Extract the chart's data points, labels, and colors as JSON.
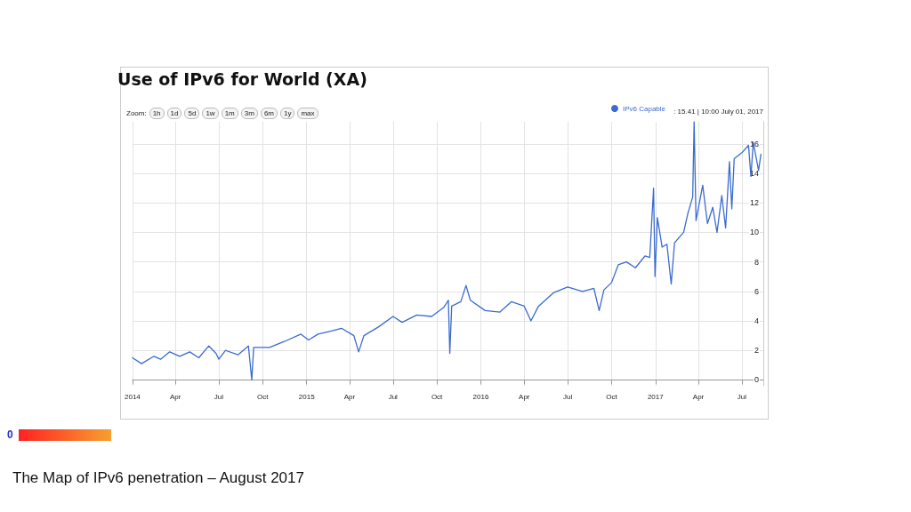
{
  "chart_data": {
    "type": "line",
    "title": "Use of IPv6 for World (XA)",
    "subtitle": "The Map of IPv6 penetration – August 2017",
    "annotations": [
      "Zoom:",
      "1h",
      "1d",
      "5d",
      "1w",
      "1m",
      "3m",
      "6m",
      "1y",
      "max",
      ": 15.41 | 10:00 July 01, 2017",
      "0"
    ],
    "x": [
      "2014-01-01",
      "2014-01-20",
      "2014-02-15",
      "2014-03-01",
      "2014-03-20",
      "2014-04-10",
      "2014-05-01",
      "2014-05-20",
      "2014-06-10",
      "2014-06-25",
      "2014-07-01",
      "2014-07-15",
      "2014-08-10",
      "2014-09-01",
      "2014-09-08",
      "2014-09-12",
      "2014-10-15",
      "2014-11-15",
      "2014-12-20",
      "2015-01-05",
      "2015-01-25",
      "2015-02-20",
      "2015-03-15",
      "2015-04-10",
      "2015-04-20",
      "2015-05-01",
      "2015-06-01",
      "2015-07-01",
      "2015-07-20",
      "2015-08-20",
      "2015-09-20",
      "2015-10-15",
      "2015-10-25",
      "2015-10-28",
      "2015-11-01",
      "2015-11-20",
      "2015-12-01",
      "2015-12-10",
      "2016-01-10",
      "2016-02-10",
      "2016-03-05",
      "2016-04-01",
      "2016-04-15",
      "2016-05-01",
      "2016-06-01",
      "2016-07-01",
      "2016-08-01",
      "2016-08-25",
      "2016-09-05",
      "2016-09-15",
      "2016-10-01",
      "2016-10-15",
      "2016-11-01",
      "2016-11-20",
      "2016-12-10",
      "2016-12-20",
      "2016-12-28",
      "2016-12-31",
      "2017-01-05",
      "2017-01-15",
      "2017-01-25",
      "2017-02-03",
      "2017-02-10",
      "2017-03-01",
      "2017-03-10",
      "2017-03-20",
      "2017-03-23",
      "2017-03-27",
      "2017-04-10",
      "2017-04-20",
      "2017-05-01",
      "2017-05-10",
      "2017-05-20",
      "2017-05-28",
      "2017-06-05",
      "2017-06-10",
      "2017-06-15",
      "2017-07-01",
      "2017-07-15",
      "2017-07-20",
      "2017-07-25",
      "2017-08-05",
      "2017-08-10"
    ],
    "series": [
      {
        "name": "IPv6 Capable",
        "color": "#3a6bd0",
        "values": [
          1.5,
          1.1,
          1.6,
          1.4,
          1.9,
          1.6,
          1.9,
          1.5,
          2.3,
          1.8,
          1.4,
          2.0,
          1.7,
          2.3,
          0,
          2.2,
          2.2,
          2.6,
          3.1,
          2.7,
          3.1,
          3.3,
          3.5,
          3.0,
          1.9,
          3.0,
          3.6,
          4.3,
          3.9,
          4.4,
          4.3,
          4.9,
          5.4,
          1.8,
          5.0,
          5.3,
          6.4,
          5.4,
          4.7,
          4.6,
          5.3,
          5.0,
          4.0,
          5.0,
          5.9,
          6.3,
          6.0,
          6.2,
          4.7,
          6.1,
          6.6,
          7.8,
          8.0,
          7.6,
          8.4,
          8.3,
          13.0,
          7.0,
          11.0,
          9.0,
          9.2,
          6.5,
          9.3,
          10.0,
          11.3,
          12.4,
          17.5,
          10.8,
          13.2,
          10.6,
          11.7,
          10.0,
          12.5,
          10.3,
          14.8,
          11.6,
          15.0,
          15.4,
          15.9,
          13.8,
          16.1,
          14.2,
          15.3
        ]
      }
    ],
    "xlim": [
      "2014-01-01",
      "2017-08-15"
    ],
    "xticks": [
      {
        "value": "2014-01-01",
        "label": "2014"
      },
      {
        "value": "2014-04-01",
        "label": "Apr"
      },
      {
        "value": "2014-07-01",
        "label": "Jul"
      },
      {
        "value": "2014-10-01",
        "label": "Oct"
      },
      {
        "value": "2015-01-01",
        "label": "2015"
      },
      {
        "value": "2015-04-01",
        "label": "Apr"
      },
      {
        "value": "2015-07-01",
        "label": "Jul"
      },
      {
        "value": "2015-10-01",
        "label": "Oct"
      },
      {
        "value": "2016-01-01",
        "label": "2016"
      },
      {
        "value": "2016-04-01",
        "label": "Apr"
      },
      {
        "value": "2016-07-01",
        "label": "Jul"
      },
      {
        "value": "2016-10-01",
        "label": "Oct"
      },
      {
        "value": "2017-01-01",
        "label": "2017"
      },
      {
        "value": "2017-04-01",
        "label": "Apr"
      },
      {
        "value": "2017-07-01",
        "label": "Jul"
      }
    ],
    "ylim": [
      -0.4,
      17.5
    ],
    "yticks": [
      0,
      2,
      4,
      6,
      8,
      10,
      12,
      14,
      16
    ],
    "grid": true,
    "legend": "top right",
    "marker": "none",
    "line_style": "solid"
  }
}
